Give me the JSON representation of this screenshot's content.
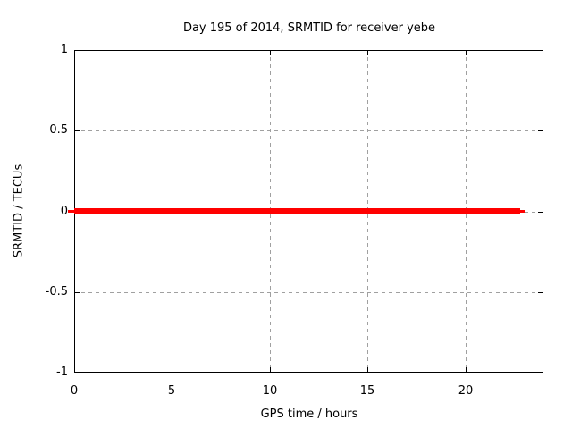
{
  "chart_data": {
    "type": "line",
    "title": "Day 195 of 2014, SRMTID for receiver yebe",
    "xlabel": "GPS time / hours",
    "ylabel": "SRMTID / TECUs",
    "xlim": [
      0,
      24
    ],
    "ylim": [
      -1,
      1
    ],
    "xticks": [
      0,
      5,
      10,
      15,
      20
    ],
    "xtick_labels": [
      "0",
      "5",
      "10",
      "15",
      "20"
    ],
    "yticks": [
      -1,
      -0.5,
      0,
      0.5,
      1
    ],
    "ytick_labels": [
      "-1",
      "-0.5",
      "0",
      "0.5",
      "1"
    ],
    "grid": true,
    "legend": false,
    "series": [
      {
        "name": "SRMTID",
        "color": "#ff0000",
        "y_value": 0,
        "x_start": 0,
        "x_end": 22.8,
        "points": [
          [
            0,
            0
          ],
          [
            22.8,
            0
          ]
        ]
      }
    ]
  },
  "colors": {
    "background": "#ffffff",
    "border": "#000000",
    "grid": "#a0a0a0",
    "text": "#000000",
    "series": "#ff0000"
  }
}
